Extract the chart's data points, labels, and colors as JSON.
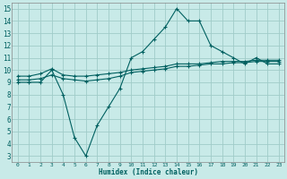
{
  "xlabel": "Humidex (Indice chaleur)",
  "bg_color": "#c8eae8",
  "grid_color": "#a0ccc8",
  "line_color": "#006060",
  "xlim": [
    -0.5,
    23.5
  ],
  "ylim": [
    2.5,
    15.5
  ],
  "xticks": [
    0,
    1,
    2,
    3,
    4,
    5,
    6,
    7,
    8,
    9,
    10,
    11,
    12,
    13,
    14,
    15,
    16,
    17,
    18,
    19,
    20,
    21,
    22,
    23
  ],
  "yticks": [
    3,
    4,
    5,
    6,
    7,
    8,
    9,
    10,
    11,
    12,
    13,
    14,
    15
  ],
  "line1_x": [
    0,
    1,
    2,
    3,
    4,
    5,
    6,
    7,
    8,
    9,
    10,
    11,
    12,
    13,
    14,
    15,
    16,
    17,
    18,
    19,
    20,
    21,
    22,
    23
  ],
  "line1_y": [
    9.0,
    9.0,
    9.0,
    10.0,
    8.0,
    4.5,
    3.0,
    5.5,
    7.0,
    8.5,
    11.0,
    11.5,
    12.5,
    13.5,
    15.0,
    14.0,
    14.0,
    12.0,
    11.5,
    11.0,
    10.5,
    11.0,
    10.5,
    10.5
  ],
  "line2_x": [
    0,
    1,
    2,
    3,
    4,
    5,
    6,
    7,
    8,
    9,
    10,
    11,
    12,
    13,
    14,
    15,
    16,
    17,
    18,
    19,
    20,
    21,
    22,
    23
  ],
  "line2_y": [
    9.5,
    9.5,
    9.7,
    10.1,
    9.6,
    9.5,
    9.5,
    9.6,
    9.7,
    9.8,
    10.0,
    10.1,
    10.2,
    10.3,
    10.5,
    10.5,
    10.5,
    10.6,
    10.7,
    10.7,
    10.7,
    10.8,
    10.8,
    10.8
  ],
  "line3_x": [
    0,
    1,
    2,
    3,
    4,
    5,
    6,
    7,
    8,
    9,
    10,
    11,
    12,
    13,
    14,
    15,
    16,
    17,
    18,
    19,
    20,
    21,
    22,
    23
  ],
  "line3_y": [
    9.2,
    9.2,
    9.3,
    9.6,
    9.3,
    9.2,
    9.1,
    9.2,
    9.3,
    9.5,
    9.8,
    9.9,
    10.0,
    10.1,
    10.3,
    10.3,
    10.4,
    10.5,
    10.5,
    10.6,
    10.6,
    10.7,
    10.7,
    10.7
  ]
}
